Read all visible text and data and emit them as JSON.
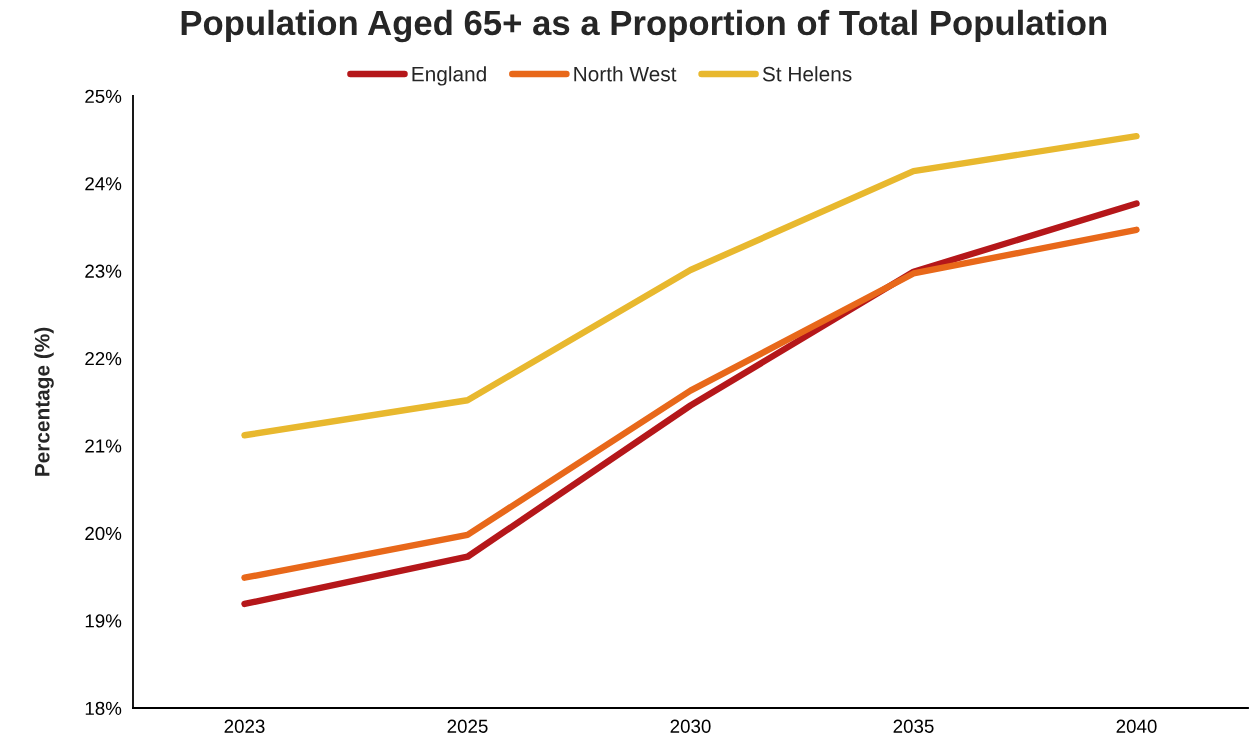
{
  "chart_data": {
    "type": "line",
    "title": "Population Aged 65+ as a Proportion of Total Population",
    "ylabel": "Percentage (%)",
    "categories": [
      "2023",
      "2025",
      "2030",
      "2035",
      "2040"
    ],
    "series": [
      {
        "name": "England",
        "color": "#b5171a",
        "values": [
          19.19,
          19.73,
          21.46,
          22.99,
          23.77
        ]
      },
      {
        "name": "North West",
        "color": "#e8681a",
        "values": [
          19.49,
          19.98,
          21.63,
          22.97,
          23.47
        ]
      },
      {
        "name": "St Helens",
        "color": "#e8b82e",
        "values": [
          21.12,
          21.52,
          23.01,
          24.14,
          24.54
        ]
      }
    ],
    "ylim": [
      18,
      25
    ],
    "yticks": [
      {
        "value": 18,
        "label": "18%"
      },
      {
        "value": 19,
        "label": "19%"
      },
      {
        "value": 20,
        "label": "20%"
      },
      {
        "value": 21,
        "label": "21%"
      },
      {
        "value": 22,
        "label": "22%"
      },
      {
        "value": 23,
        "label": "23%"
      },
      {
        "value": 24,
        "label": "24%"
      },
      {
        "value": 25,
        "label": "25%"
      }
    ],
    "legend": "top"
  }
}
